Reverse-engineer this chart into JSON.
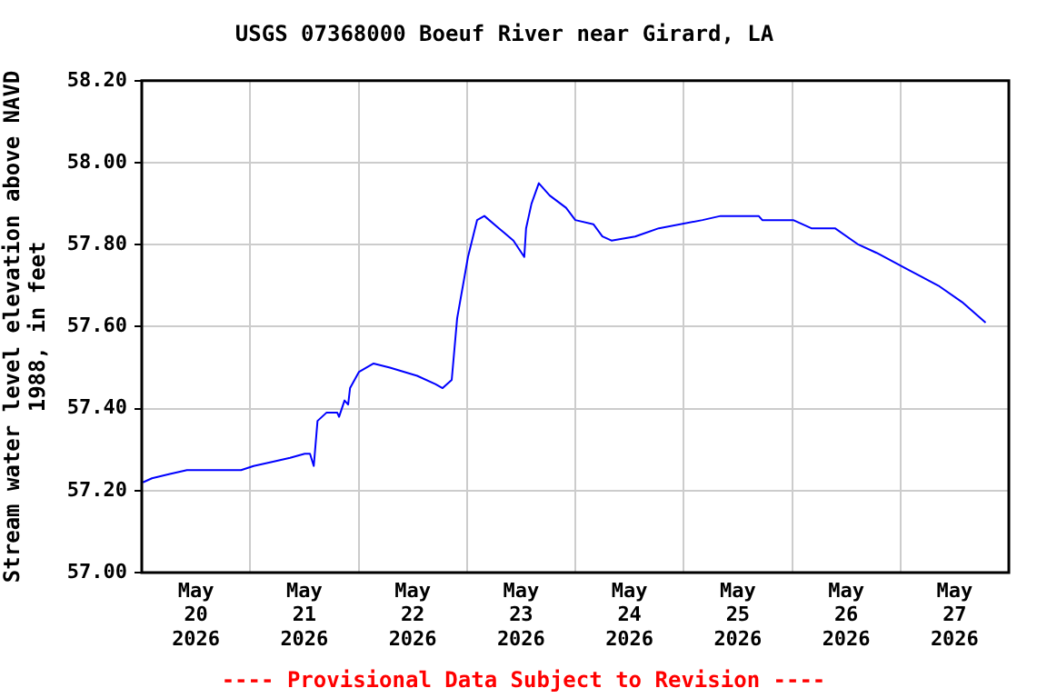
{
  "chart_data": {
    "type": "line",
    "title": "USGS 07368000 Boeuf River near Girard, LA",
    "ylabel": "Stream water level elevation above NAVD\n1988, in feet",
    "annotations": [
      "---- Provisional Data Subject to Revision ----"
    ],
    "x": [
      "2026-05-20T00:15",
      "2026-05-20T02:15",
      "2026-05-20T06:00",
      "2026-05-20T10:00",
      "2026-05-20T22:00",
      "2026-05-21T00:45",
      "2026-05-21T04:50",
      "2026-05-21T08:50",
      "2026-05-21T12:05",
      "2026-05-21T13:15",
      "2026-05-21T14:05",
      "2026-05-21T14:55",
      "2026-05-21T16:53",
      "2026-05-21T19:18",
      "2026-05-21T19:41",
      "2026-05-21T20:54",
      "2026-05-21T21:42",
      "2026-05-21T22:07",
      "2026-05-22T00:07",
      "2026-05-22T03:20",
      "2026-05-22T06:57",
      "2026-05-22T12:59",
      "2026-05-22T17:01",
      "2026-05-22T18:37",
      "2026-05-22T20:38",
      "2026-05-22T21:50",
      "2026-05-23T00:14",
      "2026-05-23T02:15",
      "2026-05-23T03:52",
      "2026-05-23T07:05",
      "2026-05-23T10:18",
      "2026-05-23T12:42",
      "2026-05-23T13:06",
      "2026-05-23T14:18",
      "2026-05-23T15:55",
      "2026-05-23T18:20",
      "2026-05-23T21:57",
      "2026-05-24T00:00",
      "2026-05-24T04:00",
      "2026-05-24T06:00",
      "2026-05-24T08:00",
      "2026-05-24T13:15",
      "2026-05-24T18:30",
      "2026-05-25T04:10",
      "2026-05-25T08:10",
      "2026-05-25T16:36",
      "2026-05-25T17:24",
      "2026-05-26T00:15",
      "2026-05-26T04:16",
      "2026-05-26T09:30",
      "2026-05-26T14:43",
      "2026-05-26T18:43",
      "2026-05-27T01:34",
      "2026-05-27T08:24",
      "2026-05-27T13:38",
      "2026-05-27T18:52"
    ],
    "series": [
      {
        "color": "#0000ff",
        "values": [
          57.22,
          57.23,
          57.24,
          57.25,
          57.25,
          57.26,
          57.27,
          57.28,
          57.29,
          57.29,
          57.26,
          57.37,
          57.39,
          57.39,
          57.38,
          57.42,
          57.41,
          57.45,
          57.49,
          57.51,
          57.5,
          57.48,
          57.46,
          57.45,
          57.47,
          57.62,
          57.77,
          57.86,
          57.87,
          57.84,
          57.81,
          57.77,
          57.84,
          57.9,
          57.95,
          57.92,
          57.89,
          57.86,
          57.85,
          57.82,
          57.81,
          57.82,
          57.84,
          57.86,
          57.87,
          57.87,
          57.86,
          57.86,
          57.84,
          57.84,
          57.8,
          57.78,
          57.74,
          57.7,
          57.66,
          57.61
        ]
      }
    ],
    "xlim": [
      "2026-05-20",
      "2026-05-28"
    ],
    "xticks": [
      {
        "value": "2026-05-20T12:00",
        "label": "May\n20\n2026"
      },
      {
        "value": "2026-05-21",
        "label": null
      },
      {
        "value": "2026-05-21T12:00",
        "label": "May\n21\n2026"
      },
      {
        "value": "2026-05-22",
        "label": null
      },
      {
        "value": "2026-05-22T12:00",
        "label": "May\n22\n2026"
      },
      {
        "value": "2026-05-23",
        "label": null
      },
      {
        "value": "2026-05-23T12:00",
        "label": "May\n23\n2026"
      },
      {
        "value": "2026-05-24",
        "label": null
      },
      {
        "value": "2026-05-24T12:00",
        "label": "May\n24\n2026"
      },
      {
        "value": "2026-05-25",
        "label": null
      },
      {
        "value": "2026-05-25T12:00",
        "label": "May\n25\n2026"
      },
      {
        "value": "2026-05-26",
        "label": null
      },
      {
        "value": "2026-05-26T12:00",
        "label": "May\n26\n2026"
      },
      {
        "value": "2026-05-27",
        "label": null
      },
      {
        "value": "2026-05-27T12:00",
        "label": "May\n27\n2026"
      }
    ],
    "ylim": [
      57.0,
      58.2
    ],
    "yticks": [
      {
        "value": 57.0,
        "label": "57.00"
      },
      {
        "value": 57.2,
        "label": "57.20"
      },
      {
        "value": 57.4,
        "label": "57.40"
      },
      {
        "value": 57.6,
        "label": "57.60"
      },
      {
        "value": 57.8,
        "label": "57.80"
      },
      {
        "value": 58.0,
        "label": "58.00"
      },
      {
        "value": 58.2,
        "label": "58.20"
      }
    ],
    "grid": true,
    "legend": false,
    "marker": "none",
    "line_style": "solid"
  }
}
